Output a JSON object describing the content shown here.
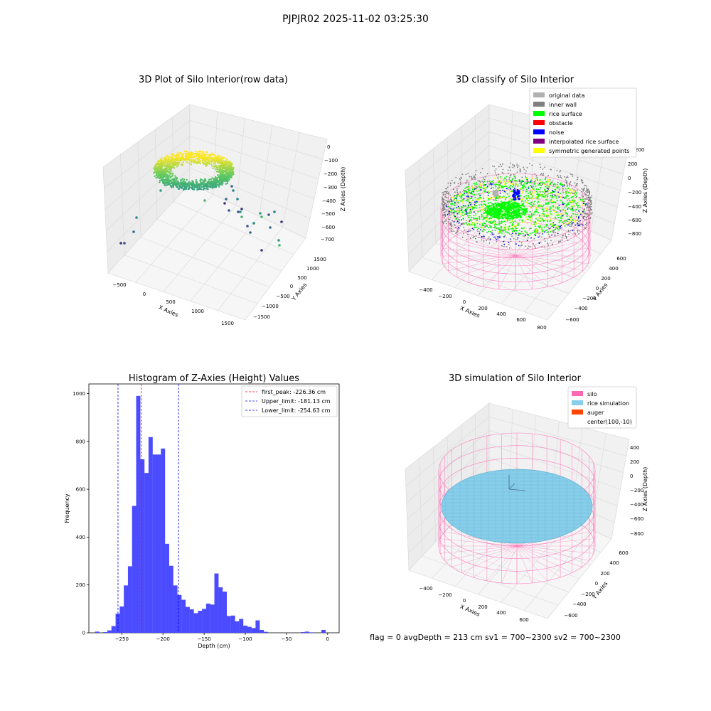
{
  "suptitle": "PJPJR02 2025-11-02 03:25:30",
  "footer": "flag = 0     avgDepth = 213 cm  sv1 = 700~2300  sv2 = 700~2300",
  "chart_data": [
    {
      "type": "scatter",
      "projection": "3d",
      "title": "3D Plot of Silo Interior(row data)",
      "xlabel": "X Axies",
      "ylabel": "Y Axies",
      "zlabel": "Z Axies (Depth)",
      "x_ticks": [
        "−500",
        "0",
        "500",
        "1000",
        "1500"
      ],
      "y_ticks": [
        "1500",
        "1000",
        "500",
        "0",
        "−500",
        "−1000",
        "−1500"
      ],
      "z_ticks": [
        "0",
        "−100",
        "−200",
        "−300",
        "−400",
        "−500",
        "−600",
        "−700"
      ],
      "colormap": "viridis",
      "outlier_points": 28
    },
    {
      "type": "scatter",
      "projection": "3d",
      "title": "3D classify of Silo Interior",
      "xlabel": "X Axies",
      "ylabel": "Y Axies",
      "zlabel": "Z Axies (Depth)",
      "x_ticks": [
        "−400",
        "−200",
        "0",
        "200",
        "400",
        "600",
        "800"
      ],
      "y_ticks": [
        "600",
        "400",
        "200",
        "0",
        "−200",
        "−400",
        "−600"
      ],
      "z_ticks": [
        "200",
        "0",
        "−200",
        "−400",
        "−600",
        "−800"
      ],
      "z_top_label": "200",
      "legend": [
        {
          "label": "original data",
          "color": "#b0b0b0"
        },
        {
          "label": "inner wall",
          "color": "#808080"
        },
        {
          "label": "rice surface",
          "color": "#00ff00"
        },
        {
          "label": "obstacle",
          "color": "#ff0000"
        },
        {
          "label": "noise",
          "color": "#0000ff"
        },
        {
          "label": "interpolated rice surface",
          "color": "#800080"
        },
        {
          "label": "symmetric generated points",
          "color": "#ffff00"
        }
      ],
      "legend_position": "top-right"
    },
    {
      "type": "bar",
      "subtype": "histogram",
      "title": "Histogram of Z-Axies (Height) Values",
      "xlabel": "Depth (cm)",
      "ylabel": "Frequency",
      "xlim": [
        -290,
        14
      ],
      "ylim": [
        0,
        1040
      ],
      "x_ticks": [
        "−250",
        "−200",
        "−150",
        "−100",
        "−50",
        "0"
      ],
      "y_ticks": [
        "0",
        "200",
        "400",
        "600",
        "800",
        "1000"
      ],
      "bar_color": "#4b4bff",
      "bin_width": 5.1,
      "bins": [
        {
          "x": -280,
          "y": 5
        },
        {
          "x": -270,
          "y": 3
        },
        {
          "x": -265,
          "y": 10
        },
        {
          "x": -260,
          "y": 28
        },
        {
          "x": -255,
          "y": 80
        },
        {
          "x": -250,
          "y": 110
        },
        {
          "x": -245,
          "y": 198
        },
        {
          "x": -240,
          "y": 278
        },
        {
          "x": -235,
          "y": 530
        },
        {
          "x": -230,
          "y": 990
        },
        {
          "x": -225,
          "y": 725
        },
        {
          "x": -220,
          "y": 668
        },
        {
          "x": -215,
          "y": 818
        },
        {
          "x": -210,
          "y": 745
        },
        {
          "x": -205,
          "y": 745
        },
        {
          "x": -200,
          "y": 770
        },
        {
          "x": -195,
          "y": 372
        },
        {
          "x": -190,
          "y": 280
        },
        {
          "x": -185,
          "y": 198
        },
        {
          "x": -180,
          "y": 158
        },
        {
          "x": -175,
          "y": 138
        },
        {
          "x": -170,
          "y": 108
        },
        {
          "x": -165,
          "y": 98
        },
        {
          "x": -160,
          "y": 82
        },
        {
          "x": -155,
          "y": 92
        },
        {
          "x": -150,
          "y": 100
        },
        {
          "x": -145,
          "y": 122
        },
        {
          "x": -140,
          "y": 118
        },
        {
          "x": -135,
          "y": 248
        },
        {
          "x": -130,
          "y": 190
        },
        {
          "x": -125,
          "y": 172
        },
        {
          "x": -120,
          "y": 70
        },
        {
          "x": -115,
          "y": 72
        },
        {
          "x": -110,
          "y": 48
        },
        {
          "x": -105,
          "y": 58
        },
        {
          "x": -100,
          "y": 30
        },
        {
          "x": -95,
          "y": 25
        },
        {
          "x": -90,
          "y": 20
        },
        {
          "x": -85,
          "y": 52
        },
        {
          "x": -80,
          "y": 12
        },
        {
          "x": -75,
          "y": 4
        },
        {
          "x": -30,
          "y": 3
        },
        {
          "x": -25,
          "y": 5
        },
        {
          "x": -20,
          "y": 2
        },
        {
          "x": -5,
          "y": 12
        }
      ],
      "vlines": [
        {
          "label": "first_peak: -226.36 cm",
          "x": -226.36,
          "color": "#ff0000"
        },
        {
          "label": "Upper_limit: -181.13 cm",
          "x": -181.13,
          "color": "#0000ff"
        },
        {
          "label": "Lower_limit: -254.63 cm",
          "x": -254.63,
          "color": "#0000ff"
        }
      ],
      "legend_position": "top-right"
    },
    {
      "type": "area",
      "projection": "3d",
      "title": "3D simulation of Silo Interior",
      "xlabel": "X Axies",
      "ylabel": "Y Axies",
      "zlabel": "Z Axies (Depth)",
      "x_ticks": [
        "−400",
        "−200",
        "0",
        "200",
        "400",
        "600"
      ],
      "y_ticks": [
        "600",
        "400",
        "200",
        "0",
        "−200",
        "−400",
        "−600"
      ],
      "z_ticks": [
        "400",
        "200",
        "0",
        "−200",
        "−400",
        "−600",
        "−800"
      ],
      "legend": [
        {
          "label": "silo",
          "color": "#ff69b4"
        },
        {
          "label": "rice simulation",
          "color": "#87ceeb"
        },
        {
          "label": "auger",
          "color": "#ff4500"
        },
        {
          "label": "center(100,-10)",
          "color": ""
        }
      ],
      "legend_position": "top-right"
    }
  ]
}
